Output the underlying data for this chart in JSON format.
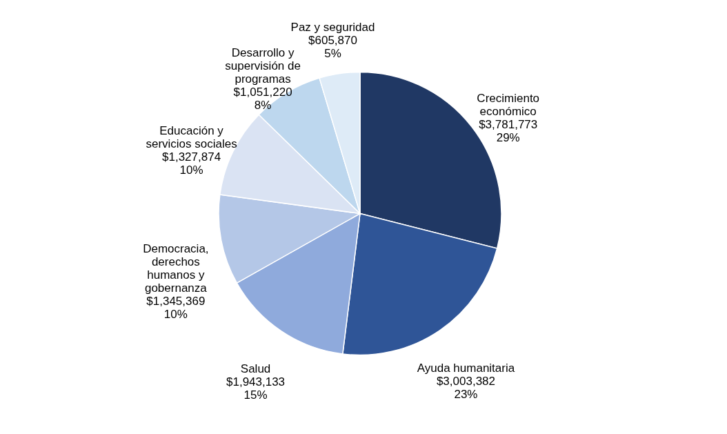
{
  "chart_data": {
    "type": "pie",
    "categories": [
      "Crecimiento económico",
      "Ayuda humanitaria",
      "Salud",
      "Democracia, derechos humanos y gobernanza",
      "Educación y servicios sociales",
      "Desarrollo y supervisión de programas",
      "Paz y seguridad"
    ],
    "values": [
      3781773,
      3003382,
      1943133,
      1345369,
      1327874,
      1051220,
      605870
    ],
    "value_labels": [
      "$3,781,773 29%",
      "$3,003,382 23%",
      "$1,943,133 15%",
      "$1,345,369 10%",
      "$1,327,874 10%",
      "$1,051,220 8%",
      "$605,870 5%"
    ],
    "colors": [
      "#203864",
      "#2f5597",
      "#8faadc",
      "#b4c7e7",
      "#dae3f3",
      "#bdd7ee",
      "#deebf7"
    ]
  }
}
